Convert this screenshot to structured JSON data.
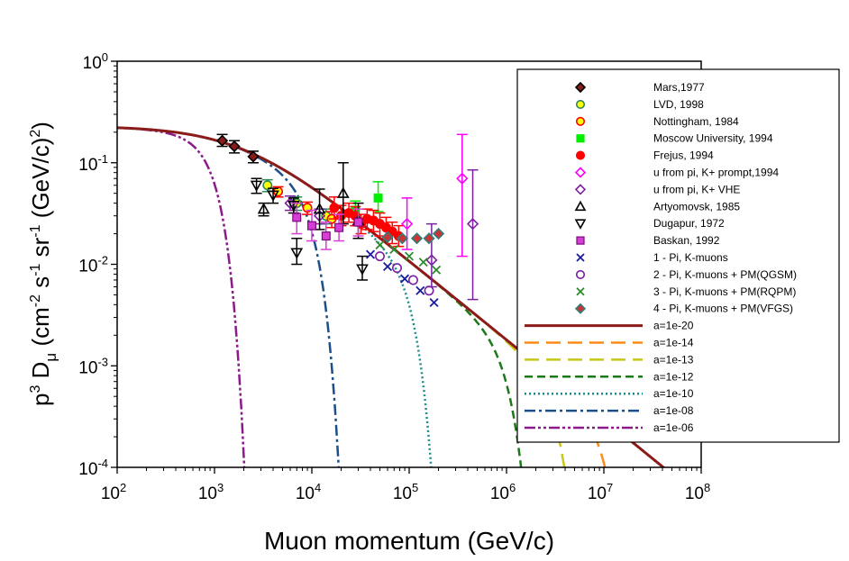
{
  "chart_data": {
    "type": "scatter",
    "title": "",
    "xlabel": "Muon momentum (GeV/c)",
    "ylabel_parts": {
      "p": "p",
      "p_exp": "3",
      "d": " D",
      "mu": "μ",
      "rest": " (cm",
      "e1": "-2",
      "s": " s",
      "e2": "-1",
      "sr": " sr",
      "e3": "-1",
      "gev": " (GeV/c)",
      "e4": "2",
      "close": ")"
    },
    "xscale": "log",
    "yscale": "log",
    "xlim": [
      100,
      100000000
    ],
    "ylim": [
      0.0001,
      1
    ],
    "xticks": [
      {
        "base": "10",
        "exp": "2",
        "value": 100
      },
      {
        "base": "10",
        "exp": "3",
        "value": 1000
      },
      {
        "base": "10",
        "exp": "4",
        "value": 10000
      },
      {
        "base": "10",
        "exp": "5",
        "value": 100000
      },
      {
        "base": "10",
        "exp": "6",
        "value": 1000000
      },
      {
        "base": "10",
        "exp": "7",
        "value": 10000000
      },
      {
        "base": "10",
        "exp": "8",
        "value": 100000000
      }
    ],
    "yticks": [
      {
        "base": "10",
        "exp": "0",
        "value": 1
      },
      {
        "base": "10",
        "exp": "-1",
        "value": 0.1
      },
      {
        "base": "10",
        "exp": "-2",
        "value": 0.01
      },
      {
        "base": "10",
        "exp": "-3",
        "value": 0.001
      },
      {
        "base": "10",
        "exp": "-4",
        "value": 0.0001
      }
    ],
    "point_series": [
      {
        "name": "Mars,1977",
        "marker": "diamond",
        "fill": "#8b1a1a",
        "stroke": "#000000",
        "errColor": "#000000",
        "points": [
          [
            1200,
            0.165,
            0.145,
            0.19
          ],
          [
            1600,
            0.145,
            0.125,
            0.165
          ],
          [
            2500,
            0.115,
            0.1,
            0.13
          ]
        ]
      },
      {
        "name": "LVD, 1998",
        "marker": "circle",
        "fill": "#ffff00",
        "stroke": "#2e8b57",
        "errColor": "#2e8b57",
        "points": [
          [
            3500,
            0.06,
            0.052,
            0.068
          ],
          [
            7000,
            0.04,
            0.034,
            0.046
          ],
          [
            14000,
            0.03,
            0.025,
            0.035
          ]
        ]
      },
      {
        "name": "Nottingham, 1984",
        "marker": "circle",
        "fill": "#ffff00",
        "stroke": "#ff0000",
        "errColor": "#ff0000",
        "points": [
          [
            4500,
            0.052,
            0.046,
            0.058
          ],
          [
            9000,
            0.036,
            0.031,
            0.041
          ],
          [
            16000,
            0.028,
            0.023,
            0.033
          ]
        ]
      },
      {
        "name": "Moscow University, 1994",
        "marker": "square",
        "fill": "#00ee00",
        "stroke": "#00ee00",
        "errColor": "#00ee00",
        "points": [
          [
            28000,
            0.034,
            0.026,
            0.042
          ],
          [
            48000,
            0.045,
            0.033,
            0.065
          ]
        ]
      },
      {
        "name": "Frejus, 1994",
        "marker": "circle",
        "fill": "#ff0000",
        "stroke": "#ff0000",
        "errColor": "#ff0000",
        "points": [
          [
            17000,
            0.036,
            0.028,
            0.046
          ],
          [
            20000,
            0.03,
            0.024,
            0.038
          ],
          [
            24000,
            0.032,
            0.026,
            0.04
          ],
          [
            28000,
            0.03,
            0.024,
            0.037
          ],
          [
            32000,
            0.025,
            0.02,
            0.031
          ],
          [
            37000,
            0.028,
            0.022,
            0.035
          ],
          [
            43000,
            0.027,
            0.021,
            0.034
          ],
          [
            50000,
            0.025,
            0.019,
            0.032
          ],
          [
            58000,
            0.023,
            0.018,
            0.029
          ],
          [
            67000,
            0.021,
            0.016,
            0.026
          ],
          [
            78000,
            0.019,
            0.015,
            0.024
          ]
        ]
      },
      {
        "name": "u from pi, K+ prompt,1994",
        "marker": "diamond-open",
        "fill": "none",
        "stroke": "#ff00ff",
        "errColor": "#ff00ff",
        "points": [
          [
            95000,
            0.025,
            0.014,
            0.045
          ],
          [
            350000,
            0.07,
            0.012,
            0.19
          ]
        ]
      },
      {
        "name": "u from pi, K+ VHE",
        "marker": "diamond-open",
        "fill": "none",
        "stroke": "#7b1fa2",
        "errColor": "#7b1fa2",
        "points": [
          [
            6000,
            0.04,
            0.034,
            0.047
          ],
          [
            12000,
            0.03,
            0.025,
            0.035
          ],
          [
            170000,
            0.011,
            0.006,
            0.025
          ],
          [
            450000,
            0.025,
            0.0045,
            0.085
          ]
        ]
      },
      {
        "name": "Artyomovsk, 1985",
        "marker": "triangle-up",
        "fill": "none",
        "stroke": "#000000",
        "errColor": "#000000",
        "points": [
          [
            3200,
            0.035,
            0.03,
            0.04
          ],
          [
            12000,
            0.035,
            0.022,
            0.055
          ],
          [
            21000,
            0.05,
            0.025,
            0.1
          ],
          [
            30000,
            0.027,
            0.018,
            0.04
          ]
        ]
      },
      {
        "name": "Dugapur, 1972",
        "marker": "triangle-down",
        "fill": "none",
        "stroke": "#000000",
        "errColor": "#000000",
        "points": [
          [
            2700,
            0.06,
            0.05,
            0.07
          ],
          [
            4000,
            0.048,
            0.04,
            0.056
          ],
          [
            6500,
            0.038,
            0.032,
            0.045
          ],
          [
            7000,
            0.013,
            0.01,
            0.018
          ],
          [
            33000,
            0.009,
            0.007,
            0.012
          ]
        ]
      },
      {
        "name": "Baskan, 1992",
        "marker": "square",
        "fill": "#d63fd6",
        "stroke": "#7a0a7a",
        "errColor": "#d63fd6",
        "points": [
          [
            7000,
            0.029,
            0.02,
            0.04
          ],
          [
            10000,
            0.024,
            0.017,
            0.034
          ],
          [
            14000,
            0.019,
            0.014,
            0.026
          ],
          [
            19000,
            0.023,
            0.017,
            0.031
          ],
          [
            30000,
            0.026,
            0.019,
            0.035
          ]
        ]
      },
      {
        "name": "1 - Pi, K-muons",
        "marker": "x",
        "fill": "none",
        "stroke": "#1a1a9e",
        "errColor": "#1a1a9e",
        "points": [
          [
            40000,
            0.0125
          ],
          [
            60000,
            0.0095
          ],
          [
            90000,
            0.0072
          ],
          [
            130000,
            0.0055
          ],
          [
            180000,
            0.0042
          ]
        ]
      },
      {
        "name": "2 - Pi, K-muons + PM(QGSM)",
        "marker": "circle-open",
        "fill": "none",
        "stroke": "#7b1fa2",
        "errColor": "#7b1fa2",
        "points": [
          [
            50000,
            0.012
          ],
          [
            75000,
            0.0092
          ],
          [
            110000,
            0.007
          ],
          [
            160000,
            0.0055
          ]
        ]
      },
      {
        "name": "3 - Pi, K-muons + PM(RQPM)",
        "marker": "x",
        "fill": "none",
        "stroke": "#2e8b2e",
        "errColor": "#2e8b2e",
        "points": [
          [
            50000,
            0.0155
          ],
          [
            70000,
            0.014
          ],
          [
            100000,
            0.012
          ],
          [
            140000,
            0.0105
          ],
          [
            190000,
            0.0088
          ]
        ]
      },
      {
        "name": "4  - Pi, K-muons + PM(VFGS)",
        "marker": "diamond",
        "fill": "#cc3333",
        "stroke": "#2f7f7f",
        "errColor": "#2f7f7f",
        "points": [
          [
            60000,
            0.0185
          ],
          [
            85000,
            0.018
          ],
          [
            120000,
            0.018
          ],
          [
            160000,
            0.018
          ],
          [
            200000,
            0.02
          ]
        ]
      }
    ],
    "line_series": [
      {
        "name": "a=1e-20",
        "color": "#8b1a1a",
        "dash": "",
        "width": 3,
        "cutoff": 1e+20
      },
      {
        "name": "a=1e-14",
        "color": "#ff8c1a",
        "dash": "16 8",
        "width": 2.5,
        "cutoff": 100000000000000.0
      },
      {
        "name": "a=1e-13",
        "color": "#c8c818",
        "dash": "16 8",
        "width": 2.5,
        "cutoff": 10000000000000.0
      },
      {
        "name": "a=1e-12",
        "color": "#1a7a1a",
        "dash": "9 5",
        "width": 2.5,
        "cutoff": 1000000000000.0
      },
      {
        "name": "a=1e-10",
        "color": "#1a8c8c",
        "dash": "2 3",
        "width": 2.5,
        "cutoff": 10000000000.0
      },
      {
        "name": "a=1e-08",
        "color": "#1a4f8c",
        "dash": "12 4 3 4",
        "width": 2.5,
        "cutoff": 100000000.0
      },
      {
        "name": "a=1e-06",
        "color": "#8b1a8b",
        "dash": "12 3 3 3 3 3",
        "width": 2.5,
        "cutoff": 1000000.0
      }
    ],
    "model": {
      "amplitude": 0.23,
      "knee": 2000,
      "slope": 0.78,
      "alpha": 1.4
    }
  }
}
